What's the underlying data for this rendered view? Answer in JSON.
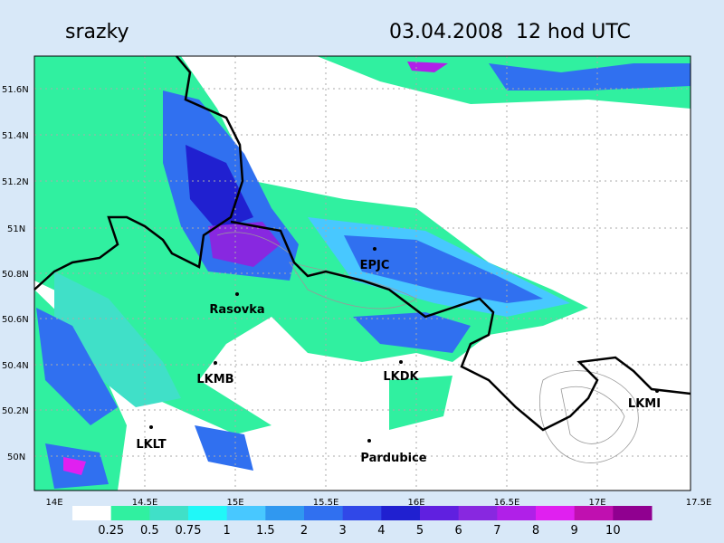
{
  "header": {
    "title": "srazky",
    "datetime": "03.04.2008  12 hod UTC"
  },
  "x_axis_labels": [
    "14E",
    "14.5E",
    "15E",
    "15.5E",
    "16E",
    "16.5E",
    "17E",
    "17.5E"
  ],
  "y_axis_labels": [
    "51.6N",
    "51.4N",
    "51.2N",
    "51N",
    "50.8N",
    "50.6N",
    "50.4N",
    "50.2N",
    "50N"
  ],
  "stations": [
    "EPJC",
    "Rasovka",
    "LKMB",
    "LKDK",
    "LKLT",
    "Pardubice",
    "LKMI"
  ],
  "colorbar": {
    "labels": [
      "0.25",
      "0.5",
      "0.75",
      "1",
      "1.5",
      "2",
      "3",
      "4",
      "5",
      "6",
      "7",
      "8",
      "9",
      "10"
    ],
    "colors": [
      "#ffffff",
      "#30f0a0",
      "#40e0c8",
      "#20f8f8",
      "#48c8ff",
      "#3098f0",
      "#3070f0",
      "#3048e8",
      "#2020d0",
      "#6020e0",
      "#8828e0",
      "#b020e8",
      "#e020f0",
      "#c010b0",
      "#900090"
    ]
  }
}
